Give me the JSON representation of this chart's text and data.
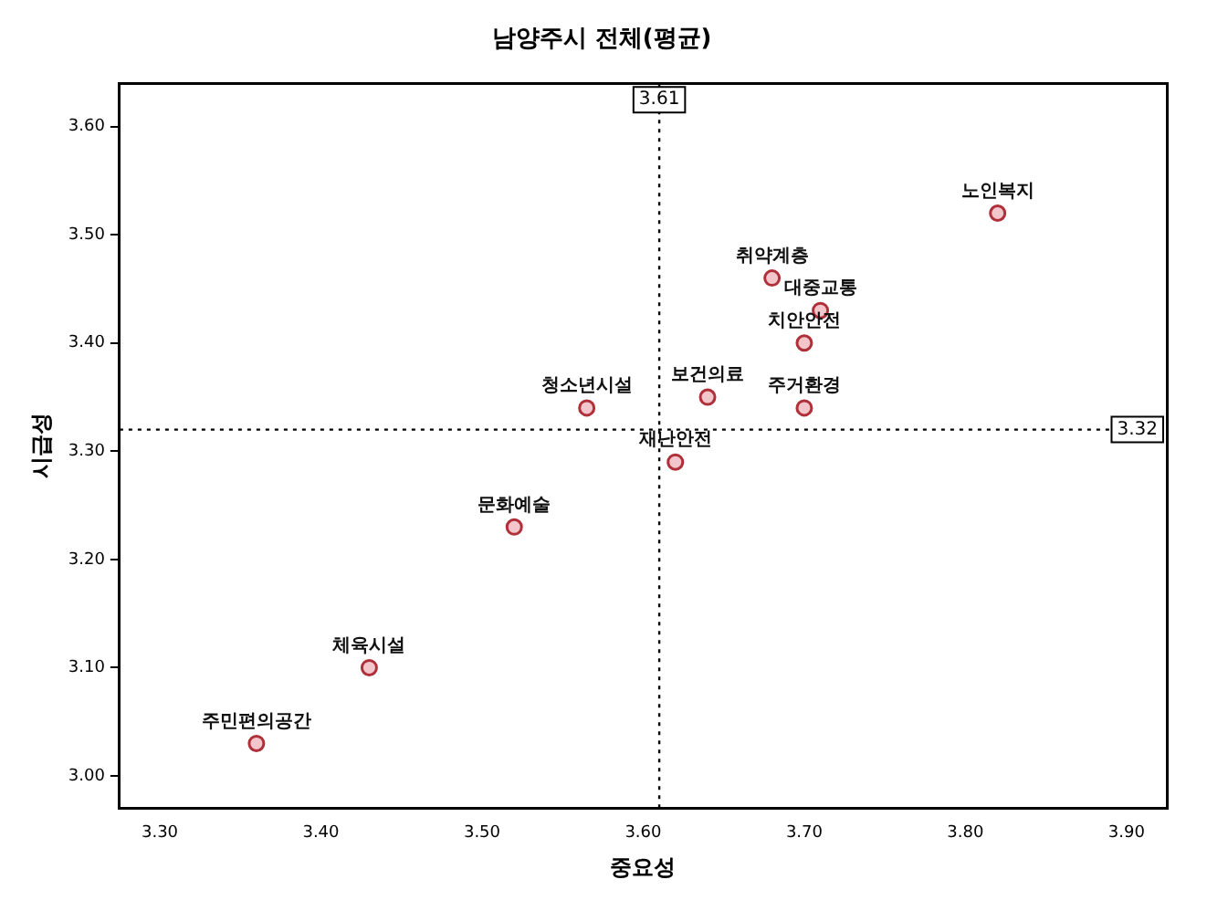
{
  "chart_data": {
    "type": "scatter",
    "title": "남양주시 전체(평균)",
    "xlabel": "중요성",
    "ylabel": "시급성",
    "x": [
      3.82,
      3.68,
      3.71,
      3.7,
      3.7,
      3.64,
      3.565,
      3.62,
      3.52,
      3.43,
      3.36
    ],
    "values": [
      3.52,
      3.46,
      3.43,
      3.4,
      3.34,
      3.35,
      3.34,
      3.29,
      3.23,
      3.1,
      3.03
    ],
    "color": "#b0303a",
    "marker": "circle",
    "grid": false,
    "legend": false,
    "xlim": [
      3.275,
      3.925
    ],
    "xticks": [
      {
        "value": 3.3,
        "label": "3.30"
      },
      {
        "value": 3.4,
        "label": "3.40"
      },
      {
        "value": 3.5,
        "label": "3.50"
      },
      {
        "value": 3.6,
        "label": "3.60"
      },
      {
        "value": 3.7,
        "label": "3.70"
      },
      {
        "value": 3.8,
        "label": "3.80"
      },
      {
        "value": 3.9,
        "label": "3.90"
      }
    ],
    "ylim": [
      2.97,
      3.64
    ],
    "yticks": [
      {
        "value": 3.0,
        "label": "3.00"
      },
      {
        "value": 3.1,
        "label": "3.10"
      },
      {
        "value": 3.2,
        "label": "3.20"
      },
      {
        "value": 3.3,
        "label": "3.30"
      },
      {
        "value": 3.4,
        "label": "3.40"
      },
      {
        "value": 3.5,
        "label": "3.50"
      },
      {
        "value": 3.6,
        "label": "3.60"
      }
    ],
    "ref_lines": [
      {
        "axis": "x",
        "value": 3.61,
        "label": "3.61",
        "line_style": "dotted"
      },
      {
        "axis": "y",
        "value": 3.32,
        "label": "3.32",
        "line_style": "dotted"
      }
    ],
    "annotations": [
      {
        "text": "노인복지",
        "x": 3.82,
        "y": 3.52
      },
      {
        "text": "취약계층",
        "x": 3.68,
        "y": 3.46
      },
      {
        "text": "대중교통",
        "x": 3.71,
        "y": 3.43
      },
      {
        "text": "치안안전",
        "x": 3.7,
        "y": 3.4
      },
      {
        "text": "주거환경",
        "x": 3.7,
        "y": 3.34
      },
      {
        "text": "보건의료",
        "x": 3.64,
        "y": 3.35
      },
      {
        "text": "청소년시설",
        "x": 3.565,
        "y": 3.34
      },
      {
        "text": "재난안전",
        "x": 3.62,
        "y": 3.29
      },
      {
        "text": "문화예술",
        "x": 3.52,
        "y": 3.23
      },
      {
        "text": "체육시설",
        "x": 3.43,
        "y": 3.1
      },
      {
        "text": "주민편의공간",
        "x": 3.36,
        "y": 3.03
      }
    ]
  }
}
